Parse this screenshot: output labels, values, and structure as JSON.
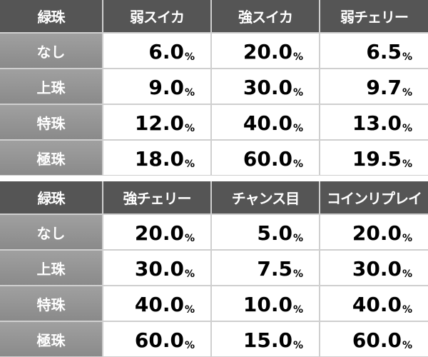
{
  "tables": [
    {
      "header": [
        "緑珠",
        "弱スイカ",
        "強スイカ",
        "弱チェリー"
      ],
      "rows": [
        {
          "label": "なし",
          "cells": [
            {
              "num": "6.0",
              "unit": "%"
            },
            {
              "num": "20.0",
              "unit": "%"
            },
            {
              "num": "6.5",
              "unit": "%"
            }
          ]
        },
        {
          "label": "上珠",
          "cells": [
            {
              "num": "9.0",
              "unit": "%"
            },
            {
              "num": "30.0",
              "unit": "%"
            },
            {
              "num": "9.7",
              "unit": "%"
            }
          ]
        },
        {
          "label": "特珠",
          "cells": [
            {
              "num": "12.0",
              "unit": "%"
            },
            {
              "num": "40.0",
              "unit": "%"
            },
            {
              "num": "13.0",
              "unit": "%"
            }
          ]
        },
        {
          "label": "極珠",
          "cells": [
            {
              "num": "18.0",
              "unit": "%"
            },
            {
              "num": "60.0",
              "unit": "%"
            },
            {
              "num": "19.5",
              "unit": "%"
            }
          ]
        }
      ]
    },
    {
      "header": [
        "緑珠",
        "強チェリー",
        "チャンス目",
        "コインリプレイ"
      ],
      "rows": [
        {
          "label": "なし",
          "cells": [
            {
              "num": "20.0",
              "unit": "%"
            },
            {
              "num": "5.0",
              "unit": "%"
            },
            {
              "num": "20.0",
              "unit": "%"
            }
          ]
        },
        {
          "label": "上珠",
          "cells": [
            {
              "num": "30.0",
              "unit": "%"
            },
            {
              "num": "7.5",
              "unit": "%"
            },
            {
              "num": "30.0",
              "unit": "%"
            }
          ]
        },
        {
          "label": "特珠",
          "cells": [
            {
              "num": "40.0",
              "unit": "%"
            },
            {
              "num": "10.0",
              "unit": "%"
            },
            {
              "num": "40.0",
              "unit": "%"
            }
          ]
        },
        {
          "label": "極珠",
          "cells": [
            {
              "num": "60.0",
              "unit": "%"
            },
            {
              "num": "15.0",
              "unit": "%"
            },
            {
              "num": "60.0",
              "unit": "%"
            }
          ]
        }
      ]
    }
  ]
}
